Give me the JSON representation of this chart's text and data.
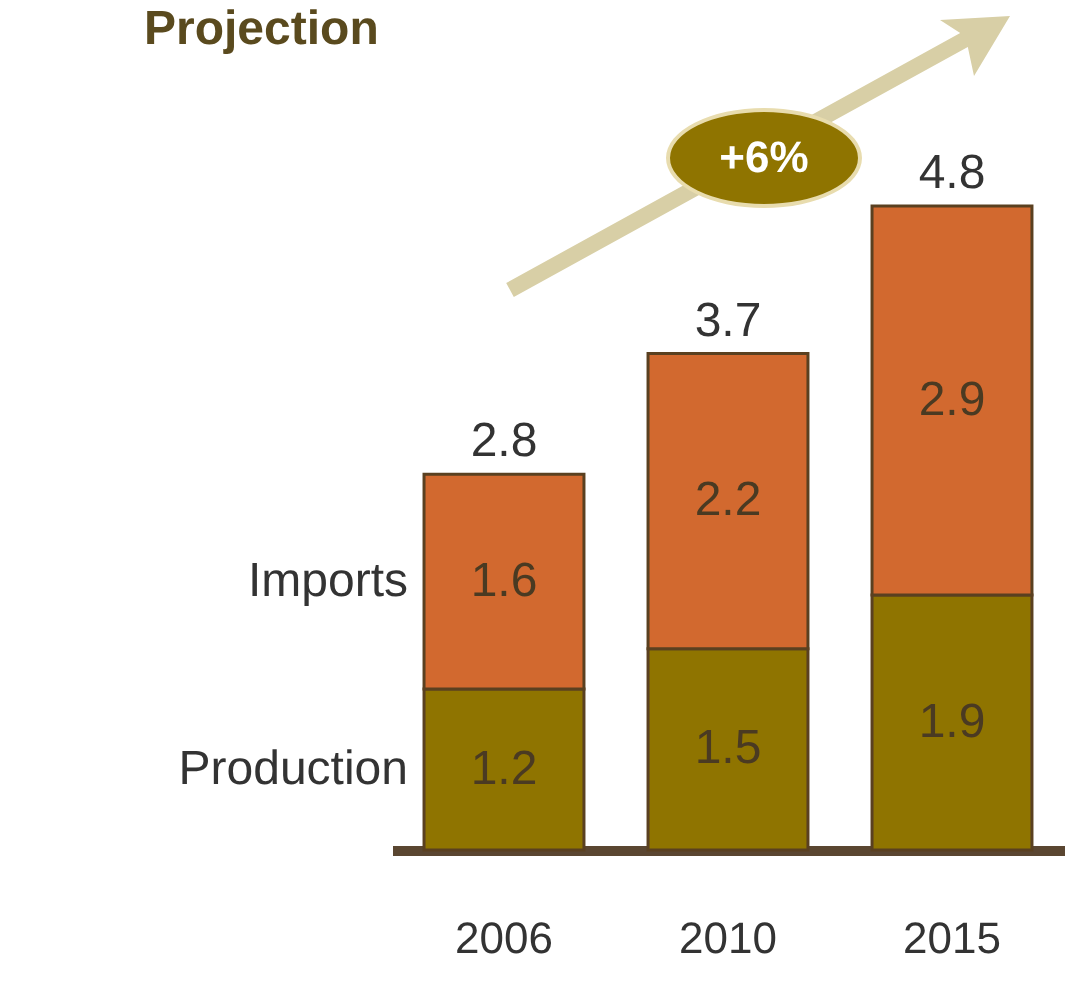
{
  "chart_data": {
    "type": "bar",
    "title": "Projection",
    "categories": [
      "2006",
      "2010",
      "2015"
    ],
    "stacked": true,
    "data_labels": true,
    "tick_labels": "x",
    "series": [
      {
        "name": "Production",
        "color": "#8f7400",
        "values": [
          1.2,
          1.5,
          1.9
        ]
      },
      {
        "name": "Imports",
        "color": "#d2692f",
        "values": [
          1.6,
          2.2,
          2.9
        ]
      }
    ],
    "totals": [
      "2.8",
      "3.7",
      "4.8"
    ],
    "annotations": [
      "+6%"
    ]
  }
}
